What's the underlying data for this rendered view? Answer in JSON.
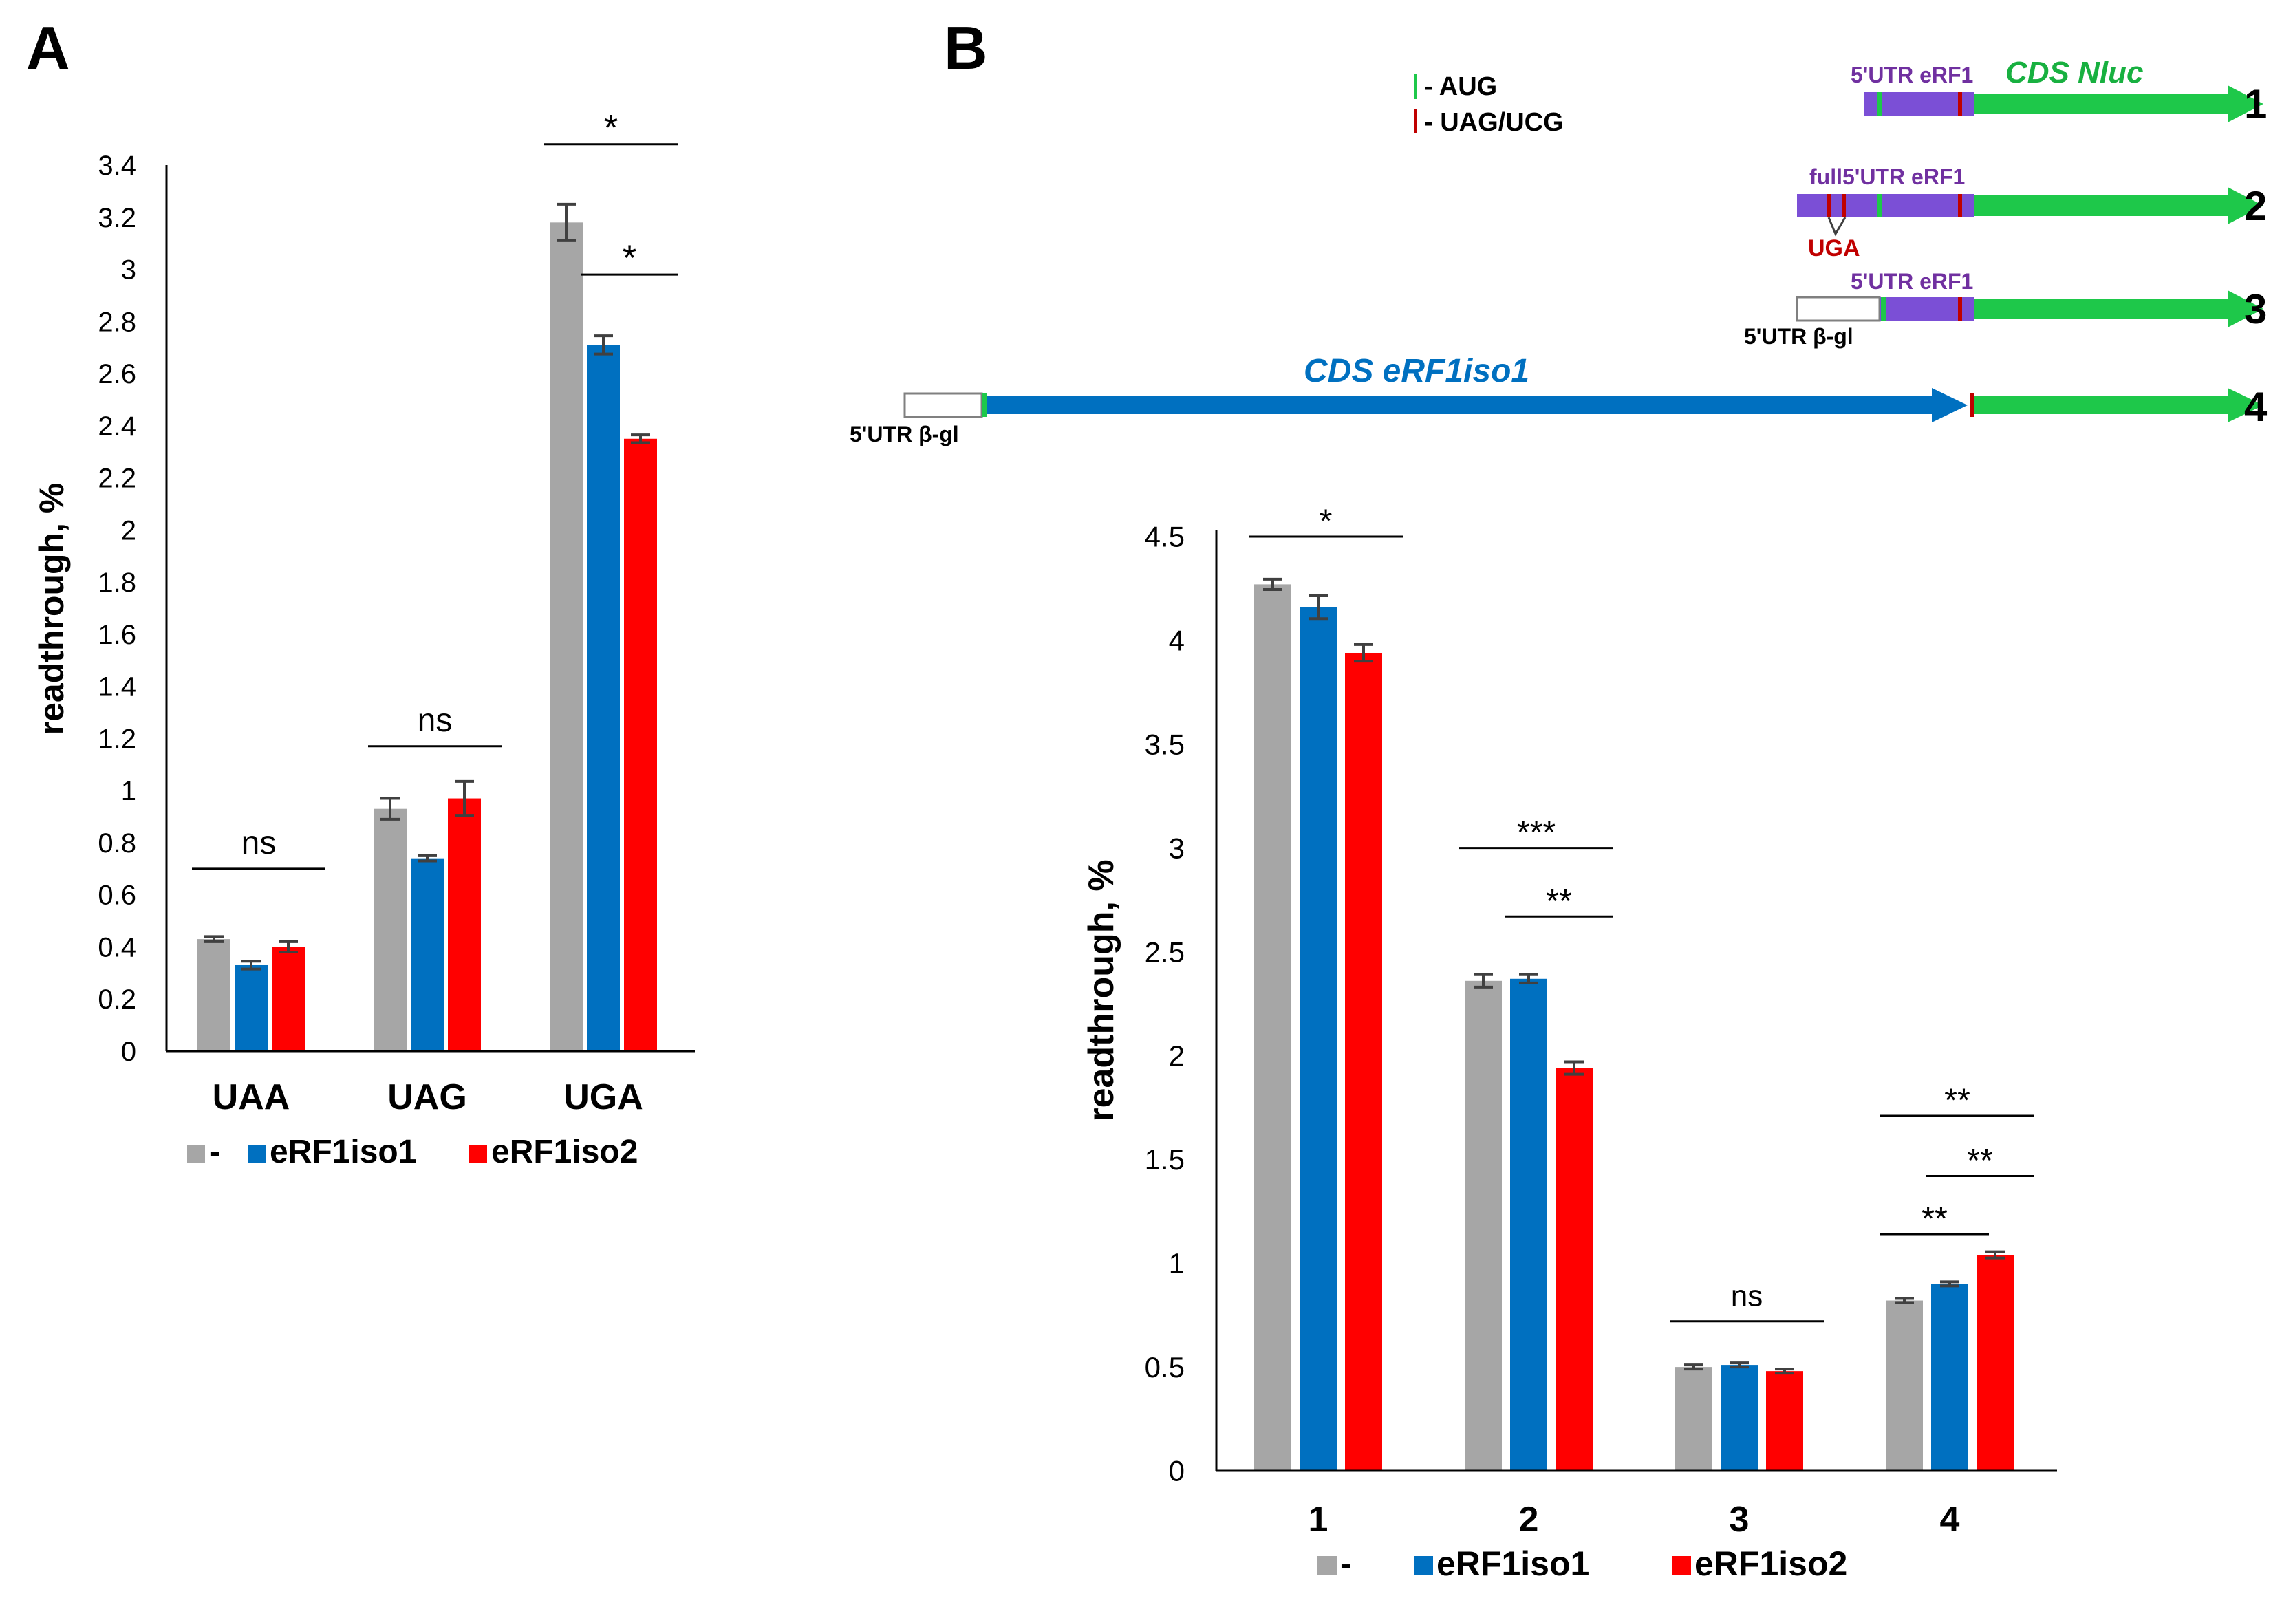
{
  "colors": {
    "control": "#a6a6a6",
    "iso1": "#0070c0",
    "iso2": "#ff0000",
    "err": "#404040",
    "axis": "#000000",
    "construct_utr": "#7b4fd6",
    "construct_cds": "#1ec84a",
    "construct_erf1": "#0070c0",
    "aug_mark": "#1ec84a",
    "stop_mark": "#c00000",
    "label_purple": "#7030a0",
    "label_green": "#18b040",
    "label_blue": "#0070c0",
    "label_uga": "#c00000"
  },
  "panels": {
    "a_letter": "A",
    "b_letter": "B"
  },
  "diagram": {
    "legend_aug": "- AUG",
    "legend_stop": "- UAG/UCG",
    "c1_utr": "5'UTR eRF1",
    "c1_cds": "CDS Nluc",
    "c1_num": "1",
    "c2_utr": "full5'UTR eRF1",
    "c2_uga": "UGA",
    "c2_num": "2",
    "c3_utr": "5'UTR eRF1",
    "c3_bgl": "5'UTR β-gl",
    "c3_num": "3",
    "c4_cds": "CDS eRF1iso1",
    "c4_bgl": "5'UTR β-gl",
    "c4_num": "4"
  },
  "chart_data": [
    {
      "id": "A",
      "type": "bar",
      "title": "",
      "xlabel": "",
      "ylabel": "readthrough, %",
      "ylim": [
        0,
        3.4
      ],
      "ytick_step": 0.2,
      "ytick_labels": [
        "0",
        "0.2",
        "0.4",
        "0.6",
        "0.8",
        "1",
        "1.2",
        "1.4",
        "1.6",
        "1.8",
        "2",
        "2.2",
        "2.4",
        "2.6",
        "2.8",
        "3",
        "3.2",
        "3.4"
      ],
      "categories": [
        "UAA",
        "UAG",
        "UGA"
      ],
      "series": [
        {
          "name": "-",
          "color": "control",
          "values": [
            0.43,
            0.93,
            3.18
          ],
          "errors": [
            0.01,
            0.04,
            0.07
          ]
        },
        {
          "name": "eRF1iso1",
          "color": "iso1",
          "values": [
            0.33,
            0.74,
            2.71
          ],
          "errors": [
            0.015,
            0.01,
            0.035
          ]
        },
        {
          "name": "eRF1iso2",
          "color": "iso2",
          "values": [
            0.4,
            0.97,
            2.35
          ],
          "errors": [
            0.02,
            0.065,
            0.015
          ]
        }
      ],
      "legend": [
        "-",
        "eRF1iso1",
        "eRF1iso2"
      ],
      "significance": [
        {
          "label": "ns",
          "cat": 0,
          "from": 0,
          "to": 2,
          "y": 0.7
        },
        {
          "label": "ns",
          "cat": 1,
          "from": 0,
          "to": 2,
          "y": 1.17
        },
        {
          "label": "*",
          "cat": 2,
          "from": 0,
          "to": 2,
          "y": 3.48
        },
        {
          "label": "*",
          "cat": 2,
          "from": 1,
          "to": 2,
          "y": 2.98
        }
      ]
    },
    {
      "id": "B",
      "type": "bar",
      "title": "",
      "xlabel": "",
      "ylabel": "readthrough, %",
      "ylim": [
        0,
        4.5
      ],
      "ytick_step": 0.5,
      "ytick_labels": [
        "0",
        "0.5",
        "1",
        "1.5",
        "2",
        "2.5",
        "3",
        "3.5",
        "4",
        "4.5"
      ],
      "categories": [
        "1",
        "2",
        "3",
        "4"
      ],
      "series": [
        {
          "name": "-",
          "color": "control",
          "values": [
            4.27,
            2.36,
            0.5,
            0.82
          ],
          "errors": [
            0.025,
            0.03,
            0.01,
            0.01
          ]
        },
        {
          "name": "eRF1iso1",
          "color": "iso1",
          "values": [
            4.16,
            2.37,
            0.51,
            0.9
          ],
          "errors": [
            0.055,
            0.02,
            0.01,
            0.01
          ]
        },
        {
          "name": "eRF1iso2",
          "color": "iso2",
          "values": [
            3.94,
            1.94,
            0.48,
            1.04
          ],
          "errors": [
            0.04,
            0.03,
            0.01,
            0.015
          ]
        }
      ],
      "legend": [
        "-",
        "eRF1iso1",
        "eRF1iso2"
      ],
      "significance": [
        {
          "label": "*",
          "cat": 0,
          "from": 0,
          "to": 2,
          "y": 4.5
        },
        {
          "label": "***",
          "cat": 1,
          "from": 0,
          "to": 2,
          "y": 3.0
        },
        {
          "label": "**",
          "cat": 1,
          "from": 1,
          "to": 2,
          "y": 2.67
        },
        {
          "label": "ns",
          "cat": 2,
          "from": 0,
          "to": 2,
          "y": 0.72
        },
        {
          "label": "**",
          "cat": 3,
          "from": 0,
          "to": 2,
          "y": 1.71
        },
        {
          "label": "**",
          "cat": 3,
          "from": 1,
          "to": 2,
          "y": 1.42
        },
        {
          "label": "**",
          "cat": 3,
          "from": 0,
          "to": 1,
          "y": 1.14
        }
      ]
    }
  ]
}
